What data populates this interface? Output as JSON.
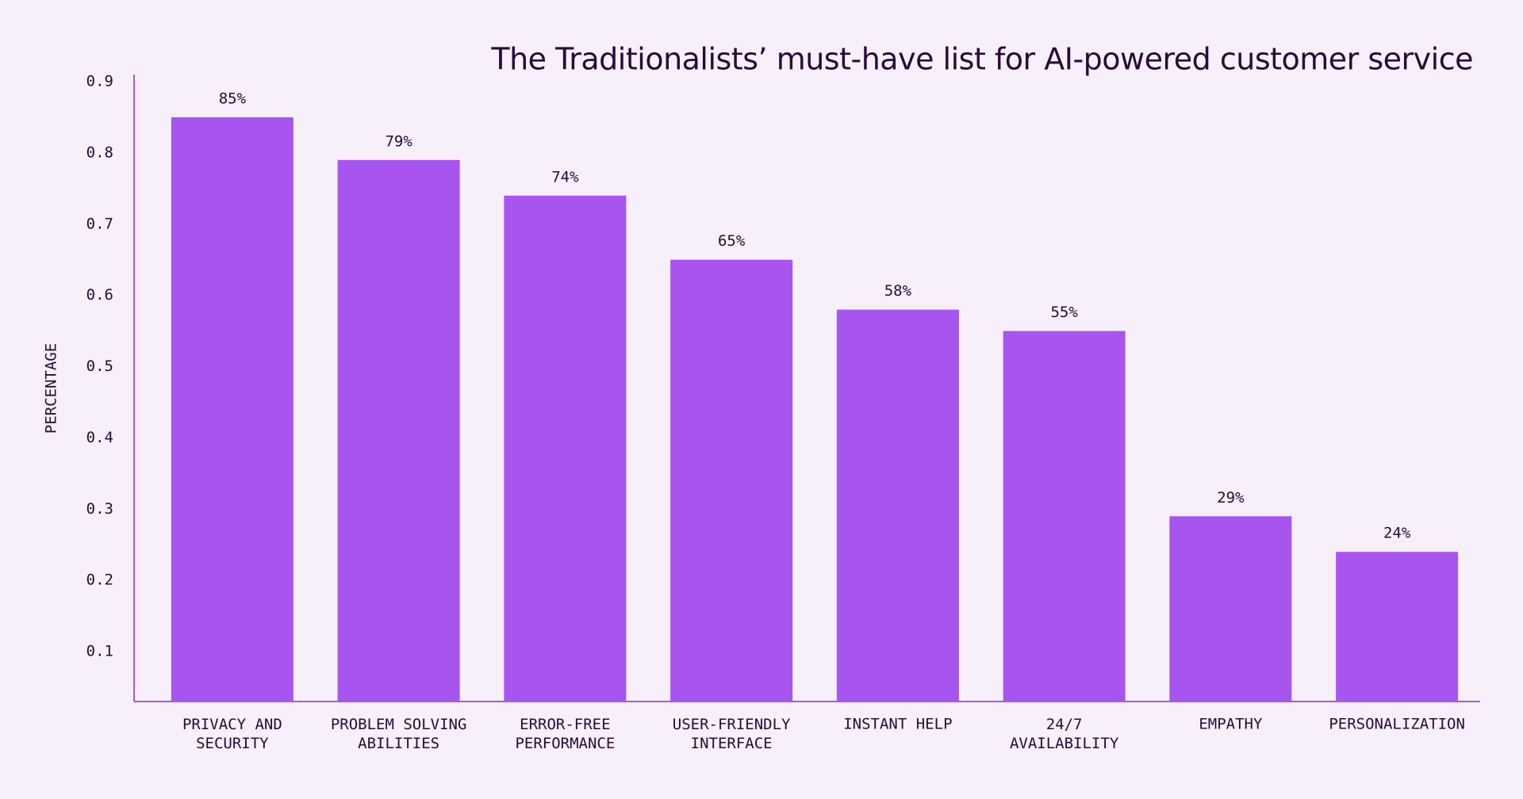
{
  "chart_data": {
    "type": "bar",
    "title": "The Traditionalists’ must-have list for AI-powered customer service",
    "y_label": "PERCENTAGE",
    "categories": [
      "PRIVACY AND\nSECURITY",
      "PROBLEM SOLVING\nABILITIES",
      "ERROR-FREE\nPERFORMANCE",
      "USER-FRIENDLY\nINTERFACE",
      "INSTANT HELP",
      "24/7\nAVAILABILITY",
      "EMPATHY",
      "PERSONALIZATION"
    ],
    "values": [
      0.85,
      0.79,
      0.74,
      0.65,
      0.58,
      0.55,
      0.29,
      0.24
    ],
    "value_labels": [
      "85%",
      "79%",
      "74%",
      "65%",
      "58%",
      "55%",
      "29%",
      "24%"
    ],
    "color": "#a855f0",
    "ylim": [
      0.03,
      0.91
    ],
    "yticks": [
      0.1,
      0.2,
      0.3,
      0.4,
      0.5,
      0.6,
      0.7,
      0.8,
      0.9
    ],
    "grid": false
  }
}
